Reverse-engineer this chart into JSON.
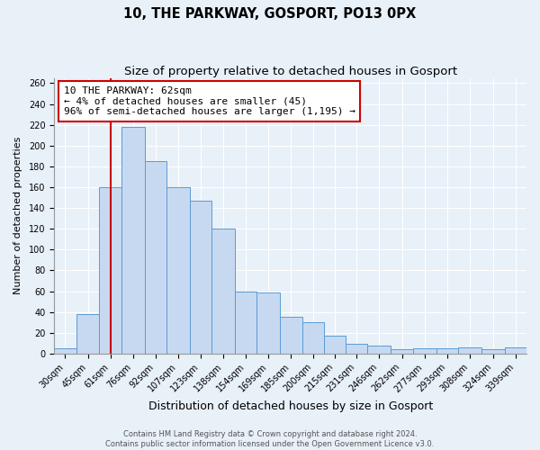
{
  "title": "10, THE PARKWAY, GOSPORT, PO13 0PX",
  "subtitle": "Size of property relative to detached houses in Gosport",
  "xlabel": "Distribution of detached houses by size in Gosport",
  "ylabel": "Number of detached properties",
  "bar_labels": [
    "30sqm",
    "45sqm",
    "61sqm",
    "76sqm",
    "92sqm",
    "107sqm",
    "123sqm",
    "138sqm",
    "154sqm",
    "169sqm",
    "185sqm",
    "200sqm",
    "215sqm",
    "231sqm",
    "246sqm",
    "262sqm",
    "277sqm",
    "293sqm",
    "308sqm",
    "324sqm",
    "339sqm"
  ],
  "bar_values": [
    5,
    38,
    160,
    218,
    185,
    160,
    147,
    120,
    60,
    59,
    35,
    30,
    17,
    9,
    8,
    4,
    5,
    5,
    6,
    4,
    6
  ],
  "bar_left_edges": [
    22.5,
    37.5,
    53.5,
    68.5,
    84.5,
    99.5,
    115.5,
    130.5,
    146.5,
    161.5,
    177.5,
    192.5,
    207.5,
    222.5,
    237.5,
    253.5,
    268.5,
    284.5,
    299.5,
    315.5,
    331.5
  ],
  "bar_right_edges": [
    37.5,
    53.5,
    68.5,
    84.5,
    99.5,
    115.5,
    130.5,
    146.5,
    161.5,
    177.5,
    192.5,
    207.5,
    222.5,
    237.5,
    253.5,
    268.5,
    284.5,
    299.5,
    315.5,
    331.5,
    346.5
  ],
  "bar_color": "#c7d9f0",
  "bar_edge_color": "#5b9bd5",
  "vline_x": 61,
  "vline_color": "#cc0000",
  "annotation_text": "10 THE PARKWAY: 62sqm\n← 4% of detached houses are smaller (45)\n96% of semi-detached houses are larger (1,195) →",
  "annotation_box_color": "#ffffff",
  "annotation_box_edge": "#cc0000",
  "ylim": [
    0,
    265
  ],
  "xlim": [
    22.5,
    346.5
  ],
  "yticks": [
    0,
    20,
    40,
    60,
    80,
    100,
    120,
    140,
    160,
    180,
    200,
    220,
    240,
    260
  ],
  "footer1": "Contains HM Land Registry data © Crown copyright and database right 2024.",
  "footer2": "Contains public sector information licensed under the Open Government Licence v3.0.",
  "bg_color": "#e8f0f8",
  "plot_bg_color": "#e8f0f8",
  "title_fontsize": 10.5,
  "subtitle_fontsize": 9.5,
  "xlabel_fontsize": 9,
  "ylabel_fontsize": 8,
  "tick_fontsize": 7,
  "annotation_fontsize": 8,
  "footer_fontsize": 6
}
